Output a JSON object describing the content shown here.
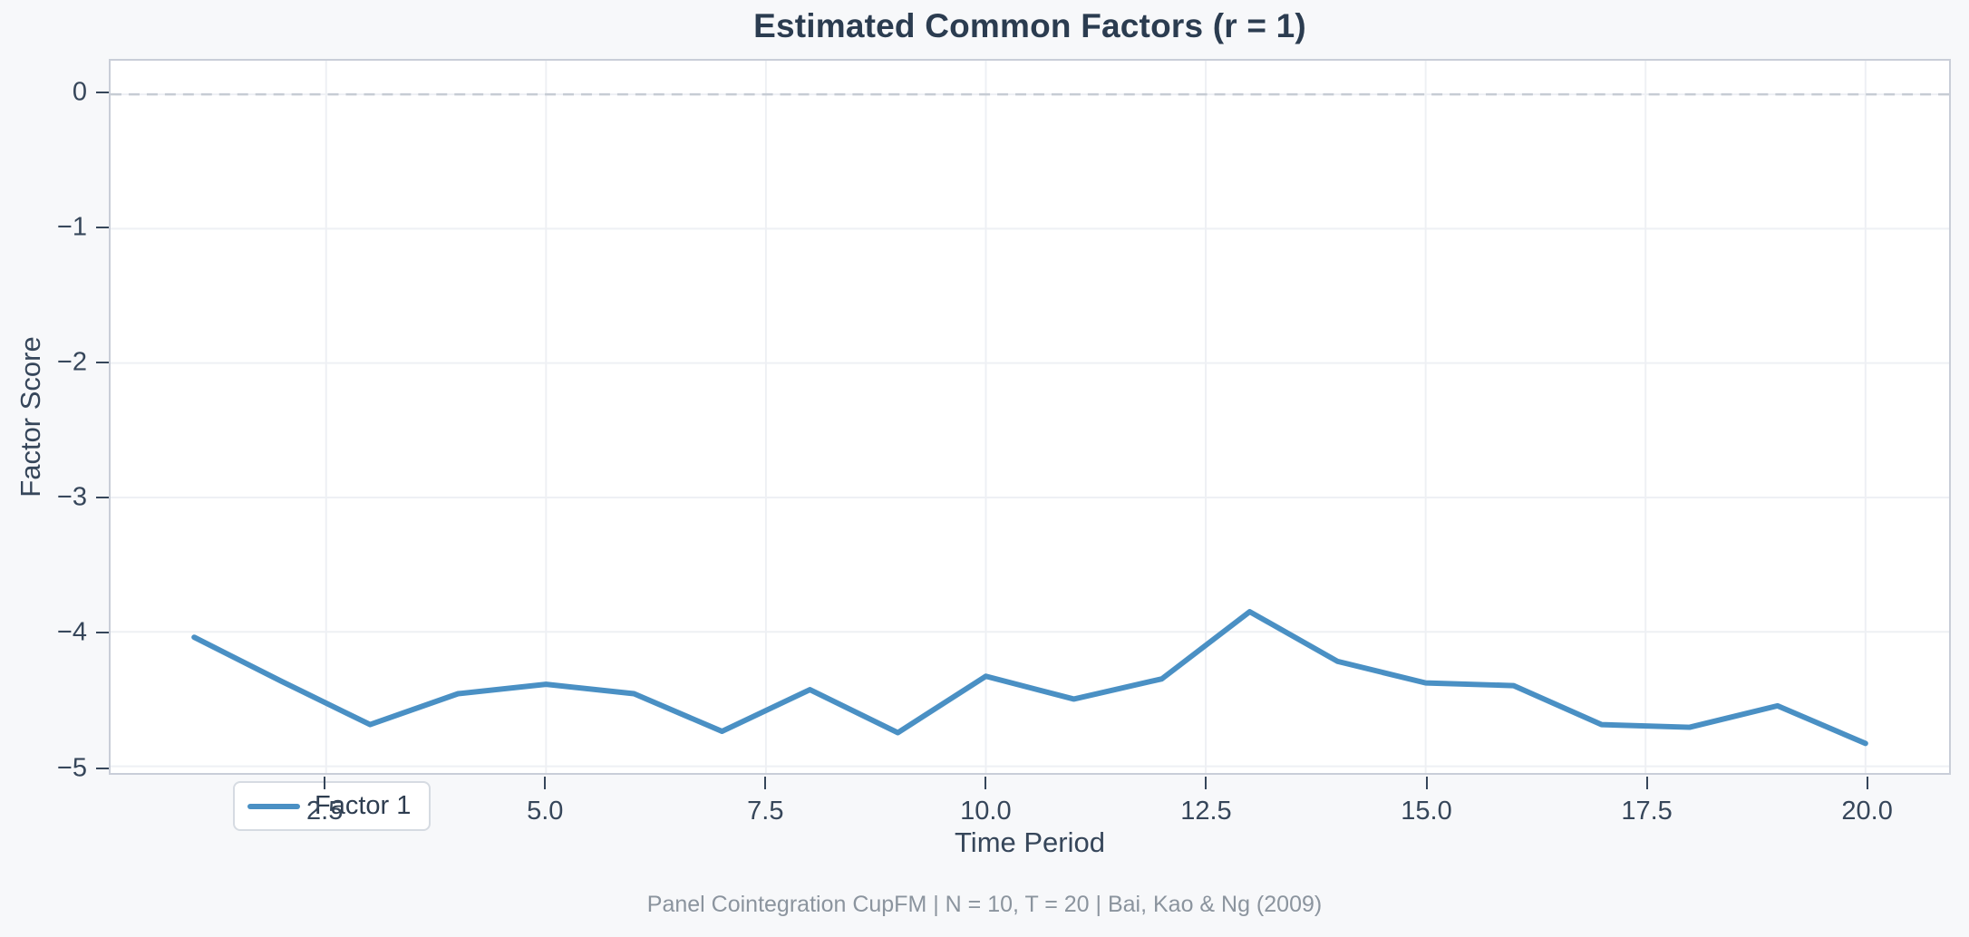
{
  "caption": "Panel Cointegration CupFM | N = 10, T = 20 | Bai, Kao & Ng (2009)",
  "colors": {
    "background": "#f7f8fa",
    "plot_background": "#ffffff",
    "plot_border": "#c9ced8",
    "grid": "#eef0f4",
    "zero_line": "#c6ccd4",
    "title_text": "#2b3c50",
    "tick_text": "#36465a",
    "caption_text": "#8b949e",
    "series_line": "#4a90c4"
  },
  "chart_data": {
    "type": "line",
    "title": "Estimated Common Factors (r = 1)",
    "xlabel": "Time Period",
    "ylabel": "Factor Score",
    "x": [
      1,
      2,
      3,
      4,
      5,
      6,
      7,
      8,
      9,
      10,
      11,
      12,
      13,
      14,
      15,
      16,
      17,
      18,
      19,
      20
    ],
    "series": [
      {
        "name": "Factor 1",
        "color": "#4a90c4",
        "values": [
          -4.04,
          -4.37,
          -4.69,
          -4.46,
          -4.39,
          -4.46,
          -4.74,
          -4.43,
          -4.75,
          -4.33,
          -4.5,
          -4.35,
          -3.85,
          -4.22,
          -4.38,
          -4.4,
          -4.69,
          -4.71,
          -4.55,
          -4.83
        ]
      }
    ],
    "x_ticks": [
      {
        "v": 2.5,
        "label": "2.5"
      },
      {
        "v": 5.0,
        "label": "5.0"
      },
      {
        "v": 7.5,
        "label": "7.5"
      },
      {
        "v": 10.0,
        "label": "10.0"
      },
      {
        "v": 12.5,
        "label": "12.5"
      },
      {
        "v": 15.0,
        "label": "15.0"
      },
      {
        "v": 17.5,
        "label": "17.5"
      },
      {
        "v": 20.0,
        "label": "20.0"
      }
    ],
    "y_ticks": [
      {
        "v": 0,
        "label": "0"
      },
      {
        "v": -1,
        "label": "−1"
      },
      {
        "v": -2,
        "label": "−2"
      },
      {
        "v": -3,
        "label": "−3"
      },
      {
        "v": -4,
        "label": "−4"
      },
      {
        "v": -5,
        "label": "−5"
      }
    ],
    "xlim": [
      0.05,
      20.95
    ],
    "ylim": [
      -5.05,
      0.25
    ],
    "grid": true,
    "zero_line": {
      "y": 0,
      "style": "dashed"
    },
    "legend_position": "lower left"
  }
}
